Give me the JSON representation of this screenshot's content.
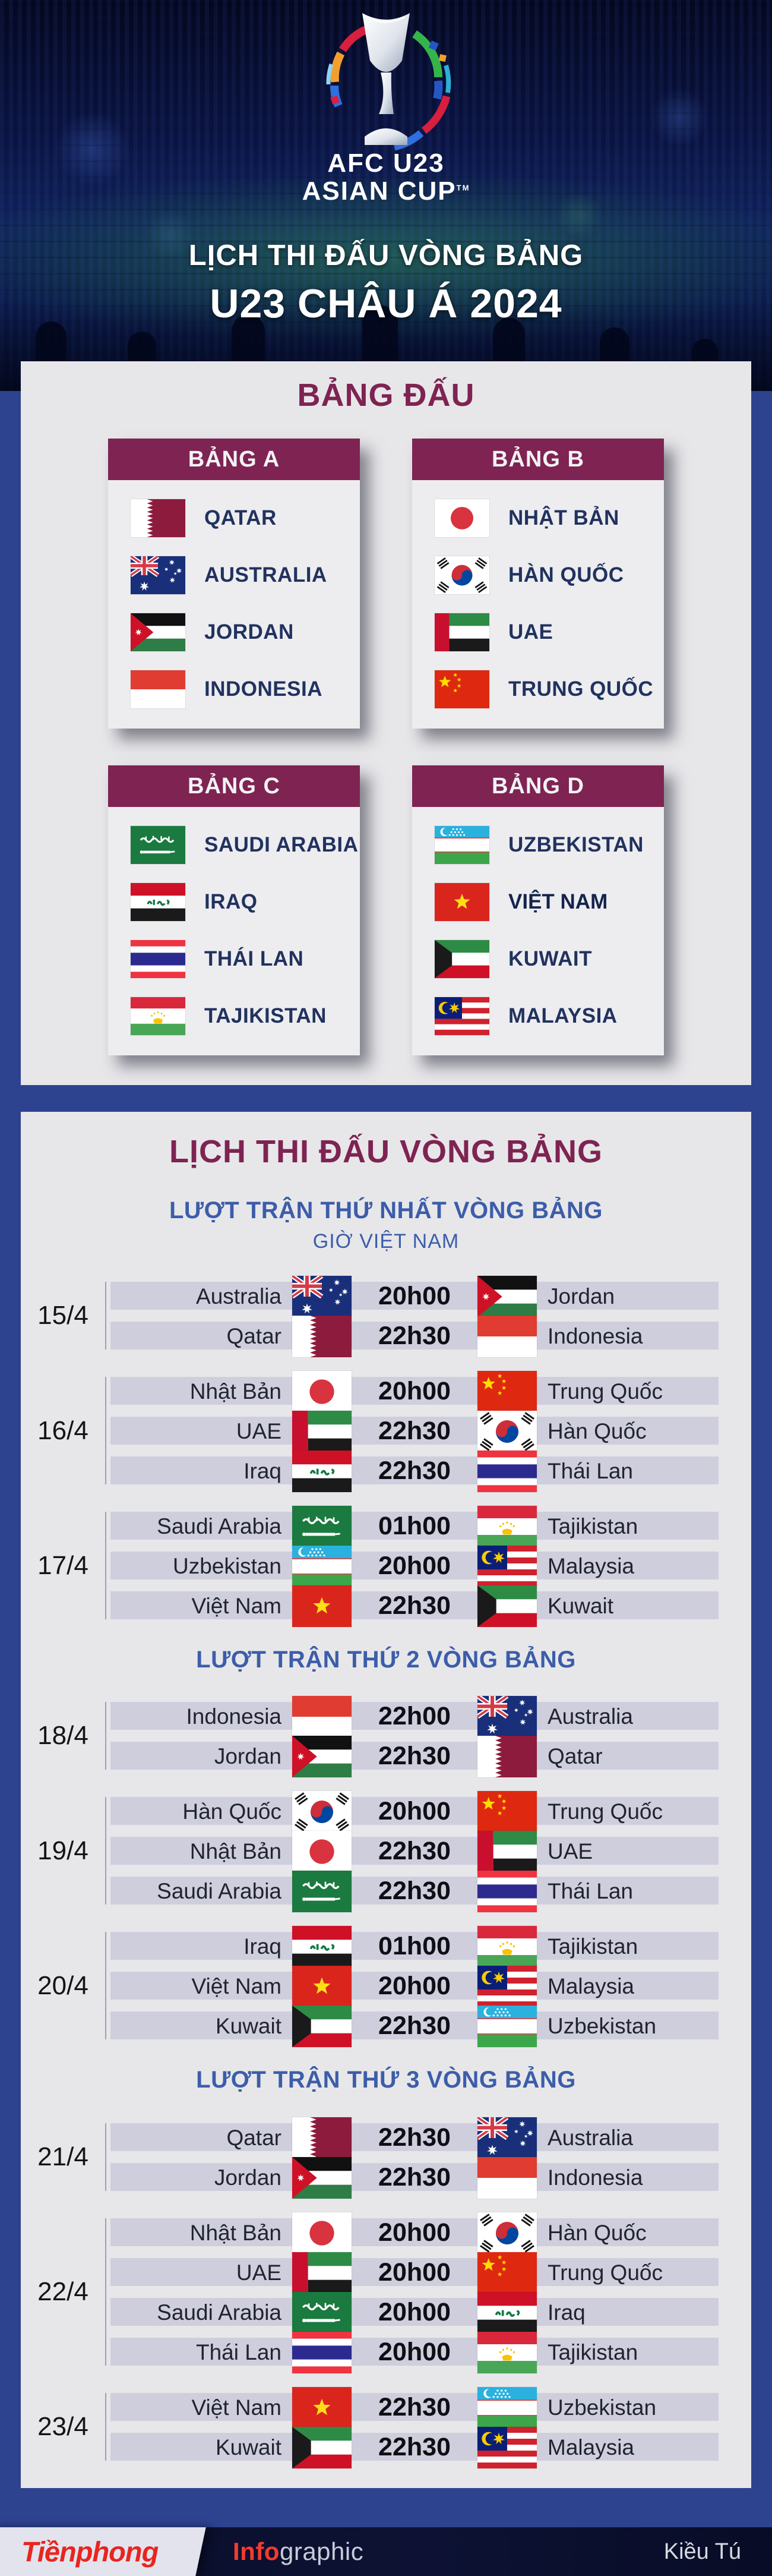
{
  "header": {
    "logo_line1": "AFC U23",
    "logo_line2": "ASIAN CUP",
    "logo_tm": "TM",
    "title_line1": "LỊCH THI ĐẤU VÒNG BẢNG",
    "title_line2": "U23 CHÂU Á 2024"
  },
  "groups_section": {
    "title": "BẢNG ĐẤU",
    "groups": [
      {
        "name": "BẢNG A",
        "teams": [
          {
            "flag": "qa",
            "name": "QATAR"
          },
          {
            "flag": "au",
            "name": "AUSTRALIA"
          },
          {
            "flag": "jo",
            "name": "JORDAN"
          },
          {
            "flag": "id",
            "name": "INDONESIA"
          }
        ]
      },
      {
        "name": "BẢNG B",
        "teams": [
          {
            "flag": "jp",
            "name": "NHẬT BẢN"
          },
          {
            "flag": "kr",
            "name": "HÀN QUỐC"
          },
          {
            "flag": "ae",
            "name": "UAE"
          },
          {
            "flag": "cn",
            "name": "TRUNG QUỐC"
          }
        ]
      },
      {
        "name": "BẢNG C",
        "teams": [
          {
            "flag": "sa",
            "name": "SAUDI ARABIA"
          },
          {
            "flag": "iq",
            "name": "IRAQ"
          },
          {
            "flag": "th",
            "name": "THÁI LAN"
          },
          {
            "flag": "tj",
            "name": "TAJIKISTAN"
          }
        ]
      },
      {
        "name": "BẢNG D",
        "teams": [
          {
            "flag": "uz",
            "name": "UZBEKISTAN"
          },
          {
            "flag": "vn",
            "name": "VIỆT NAM",
            "bold": true
          },
          {
            "flag": "kw",
            "name": "KUWAIT"
          },
          {
            "flag": "my",
            "name": "MALAYSIA"
          }
        ]
      }
    ]
  },
  "schedule_section": {
    "title": "LỊCH THI ĐẤU VÒNG BẢNG",
    "rounds": [
      {
        "title": "LƯỢT TRẬN THỨ NHẤT VÒNG BẢNG",
        "subtitle": "GIỜ VIỆT NAM",
        "days": [
          {
            "date": "15/4",
            "matches": [
              {
                "home": "Australia",
                "home_flag": "au",
                "time": "20h00",
                "away_flag": "jo",
                "away": "Jordan"
              },
              {
                "home": "Qatar",
                "home_flag": "qa",
                "time": "22h30",
                "away_flag": "id",
                "away": "Indonesia"
              }
            ]
          },
          {
            "date": "16/4",
            "matches": [
              {
                "home": "Nhật Bản",
                "home_flag": "jp",
                "time": "20h00",
                "away_flag": "cn",
                "away": "Trung Quốc"
              },
              {
                "home": "UAE",
                "home_flag": "ae",
                "time": "22h30",
                "away_flag": "kr",
                "away": "Hàn Quốc"
              },
              {
                "home": "Iraq",
                "home_flag": "iq",
                "time": "22h30",
                "away_flag": "th",
                "away": "Thái Lan"
              }
            ]
          },
          {
            "date": "17/4",
            "matches": [
              {
                "home": "Saudi Arabia",
                "home_flag": "sa",
                "time": "01h00",
                "away_flag": "tj",
                "away": "Tajikistan"
              },
              {
                "home": "Uzbekistan",
                "home_flag": "uz",
                "time": "20h00",
                "away_flag": "my",
                "away": "Malaysia"
              },
              {
                "home": "Việt Nam",
                "home_flag": "vn",
                "time": "22h30",
                "away_flag": "kw",
                "away": "Kuwait"
              }
            ]
          }
        ]
      },
      {
        "title": "LƯỢT TRẬN THỨ 2 VÒNG BẢNG",
        "days": [
          {
            "date": "18/4",
            "matches": [
              {
                "home": "Indonesia",
                "home_flag": "id",
                "time": "22h00",
                "away_flag": "au",
                "away": "Australia"
              },
              {
                "home": "Jordan",
                "home_flag": "jo",
                "time": "22h30",
                "away_flag": "qa",
                "away": "Qatar"
              }
            ]
          },
          {
            "date": "19/4",
            "matches": [
              {
                "home": "Hàn Quốc",
                "home_flag": "kr",
                "time": "20h00",
                "away_flag": "cn",
                "away": "Trung Quốc"
              },
              {
                "home": "Nhật Bản",
                "home_flag": "jp",
                "time": "22h30",
                "away_flag": "ae",
                "away": "UAE"
              },
              {
                "home": "Saudi Arabia",
                "home_flag": "sa",
                "time": "22h30",
                "away_flag": "th",
                "away": "Thái Lan"
              }
            ]
          },
          {
            "date": "20/4",
            "matches": [
              {
                "home": "Iraq",
                "home_flag": "iq",
                "time": "01h00",
                "away_flag": "tj",
                "away": "Tajikistan"
              },
              {
                "home": "Việt Nam",
                "home_flag": "vn",
                "time": "20h00",
                "away_flag": "my",
                "away": "Malaysia"
              },
              {
                "home": "Kuwait",
                "home_flag": "kw",
                "time": "22h30",
                "away_flag": "uz",
                "away": "Uzbekistan"
              }
            ]
          }
        ]
      },
      {
        "title": "LƯỢT TRẬN THỨ 3 VÒNG BẢNG",
        "days": [
          {
            "date": "21/4",
            "matches": [
              {
                "home": "Qatar",
                "home_flag": "qa",
                "time": "22h30",
                "away_flag": "au",
                "away": "Australia"
              },
              {
                "home": "Jordan",
                "home_flag": "jo",
                "time": "22h30",
                "away_flag": "id",
                "away": "Indonesia"
              }
            ]
          },
          {
            "date": "22/4",
            "matches": [
              {
                "home": "Nhật Bản",
                "home_flag": "jp",
                "time": "20h00",
                "away_flag": "kr",
                "away": "Hàn Quốc"
              },
              {
                "home": "UAE",
                "home_flag": "ae",
                "time": "20h00",
                "away_flag": "cn",
                "away": "Trung Quốc"
              },
              {
                "home": "Saudi Arabia",
                "home_flag": "sa",
                "time": "20h00",
                "away_flag": "iq",
                "away": "Iraq"
              },
              {
                "home": "Thái Lan",
                "home_flag": "th",
                "time": "20h00",
                "away_flag": "tj",
                "away": "Tajikistan"
              }
            ]
          },
          {
            "date": "23/4",
            "matches": [
              {
                "home": "Việt Nam",
                "home_flag": "vn",
                "time": "22h30",
                "away_flag": "uz",
                "away": "Uzbekistan"
              },
              {
                "home": "Kuwait",
                "home_flag": "kw",
                "time": "22h30",
                "away_flag": "my",
                "away": "Malaysia"
              }
            ]
          }
        ]
      }
    ]
  },
  "footer": {
    "brand": "Tiềnphong",
    "info": "Info",
    "graphic": "graphic",
    "credit": "Kiều Tú"
  },
  "colors": {
    "accent_maroon": "#7e2352",
    "background_blue": "#2e4390",
    "panel_gray": "#e7e7ea",
    "row_lavender": "#cfcedd",
    "round_title_blue": "#3c5da9",
    "navy_text": "#21325f",
    "footer_navy": "#0a0e2a",
    "logo_red": "#e8251f"
  }
}
